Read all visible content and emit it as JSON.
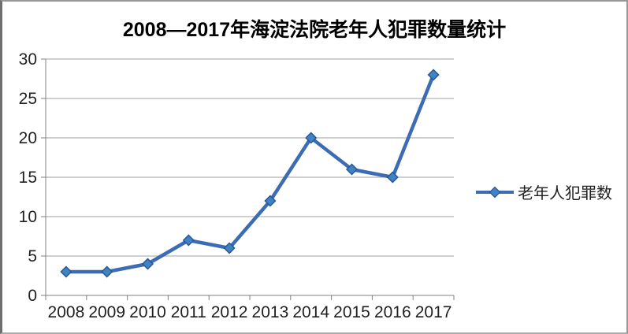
{
  "title": "2008—2017年海淀法院老年人犯罪数量统计",
  "legend": {
    "label": "老年人犯罪数"
  },
  "chart_data": {
    "type": "line",
    "title": "2008—2017年海淀法院老年人犯罪数量统计",
    "categories": [
      "2008",
      "2009",
      "2010",
      "2011",
      "2012",
      "2013",
      "2014",
      "2015",
      "2016",
      "2017"
    ],
    "series": [
      {
        "name": "老年人犯罪数",
        "values": [
          3,
          3,
          4,
          7,
          6,
          12,
          20,
          16,
          15,
          28
        ]
      }
    ],
    "xlabel": "",
    "ylabel": "",
    "ylim": [
      0,
      30
    ],
    "yticks": [
      0,
      5,
      10,
      15,
      20,
      25,
      30
    ],
    "grid": true,
    "legend_position": "right",
    "marker": "diamond",
    "colors": {
      "line": "#3C6CB4",
      "marker_fill": "#3F83C6",
      "marker_stroke": "#28578F",
      "grid": "#A0A0A0",
      "axis": "#808080",
      "tick_text": "#1F1F1F",
      "title_text": "#000000",
      "background": "#FFFFFF"
    }
  }
}
